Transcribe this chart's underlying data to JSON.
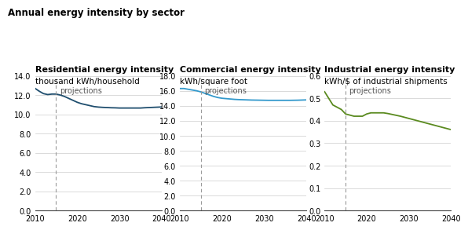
{
  "title": "Annual energy intensity by sector",
  "panels": [
    {
      "subtitle": "Residential energy intensity",
      "unit": "thousand kWh/household",
      "color": "#1f4e6e",
      "ylim": [
        0,
        14.0
      ],
      "yticks": [
        0.0,
        2.0,
        4.0,
        6.0,
        8.0,
        10.0,
        12.0,
        14.0
      ],
      "projection_x": 2015,
      "years": [
        2010,
        2011,
        2012,
        2013,
        2014,
        2015,
        2016,
        2017,
        2018,
        2019,
        2020,
        2021,
        2022,
        2023,
        2024,
        2025,
        2026,
        2027,
        2028,
        2029,
        2030,
        2031,
        2032,
        2033,
        2034,
        2035,
        2036,
        2037,
        2038,
        2039,
        2040
      ],
      "values": [
        12.7,
        12.4,
        12.15,
        12.05,
        12.1,
        12.1,
        12.0,
        11.85,
        11.65,
        11.45,
        11.25,
        11.1,
        11.0,
        10.9,
        10.8,
        10.75,
        10.72,
        10.7,
        10.68,
        10.67,
        10.65,
        10.65,
        10.65,
        10.65,
        10.65,
        10.65,
        10.68,
        10.7,
        10.72,
        10.74,
        10.76
      ]
    },
    {
      "subtitle": "Commercial energy intensity",
      "unit": "kWh/square foot",
      "color": "#3399cc",
      "ylim": [
        0,
        18.0
      ],
      "yticks": [
        0.0,
        2.0,
        4.0,
        6.0,
        8.0,
        10.0,
        12.0,
        14.0,
        16.0,
        18.0
      ],
      "projection_x": 2015,
      "years": [
        2010,
        2011,
        2012,
        2013,
        2014,
        2015,
        2016,
        2017,
        2018,
        2019,
        2020,
        2021,
        2022,
        2023,
        2024,
        2025,
        2026,
        2027,
        2028,
        2029,
        2030,
        2031,
        2032,
        2033,
        2034,
        2035,
        2036,
        2037,
        2038,
        2039,
        2040
      ],
      "values": [
        16.3,
        16.3,
        16.2,
        16.1,
        16.0,
        15.85,
        15.65,
        15.45,
        15.25,
        15.1,
        15.0,
        14.95,
        14.9,
        14.85,
        14.82,
        14.8,
        14.78,
        14.76,
        14.75,
        14.74,
        14.73,
        14.72,
        14.72,
        14.72,
        14.72,
        14.72,
        14.72,
        14.73,
        14.74,
        14.76,
        14.78
      ]
    },
    {
      "subtitle": "Industrial energy intensity",
      "unit": "kWh/$ of industrial shipments",
      "color": "#5a8a1f",
      "ylim": [
        0,
        0.6
      ],
      "yticks": [
        0.0,
        0.1,
        0.2,
        0.3,
        0.4,
        0.5,
        0.6
      ],
      "projection_x": 2015,
      "years": [
        2010,
        2011,
        2012,
        2013,
        2014,
        2015,
        2016,
        2017,
        2018,
        2019,
        2020,
        2021,
        2022,
        2023,
        2024,
        2025,
        2026,
        2027,
        2028,
        2029,
        2030,
        2031,
        2032,
        2033,
        2034,
        2035,
        2036,
        2037,
        2038,
        2039,
        2040
      ],
      "values": [
        0.53,
        0.5,
        0.47,
        0.46,
        0.45,
        0.43,
        0.425,
        0.42,
        0.42,
        0.42,
        0.43,
        0.435,
        0.435,
        0.435,
        0.435,
        0.432,
        0.428,
        0.424,
        0.42,
        0.415,
        0.41,
        0.405,
        0.4,
        0.395,
        0.39,
        0.385,
        0.38,
        0.375,
        0.37,
        0.365,
        0.36
      ]
    }
  ],
  "xlim": [
    2010,
    2040
  ],
  "xticks": [
    2010,
    2020,
    2030,
    2040
  ],
  "projection_label": "projections",
  "bg_color": "#ffffff",
  "grid_color": "#cccccc",
  "title_fontsize": 8.5,
  "subtitle_fontsize": 8,
  "unit_fontsize": 7.5,
  "tick_fontsize": 7,
  "proj_label_fontsize": 7
}
